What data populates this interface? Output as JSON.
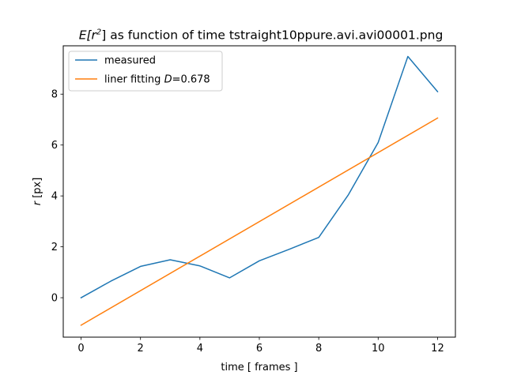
{
  "chart_data": {
    "type": "line",
    "title": {
      "prefix": "E[r",
      "superscript": "2",
      "suffix": "] as function of time tstraight10ppure.avi.avi00001.png"
    },
    "xlabel": "time [ frames ]",
    "ylabel": {
      "italic": "r",
      "rest": " [px]"
    },
    "xlim": [
      -0.6,
      12.6
    ],
    "ylim": [
      -1.55,
      9.9
    ],
    "xticks": [
      0,
      2,
      4,
      6,
      8,
      10,
      12
    ],
    "yticks": [
      0,
      2,
      4,
      6,
      8
    ],
    "legend_position": "top-left",
    "grid": false,
    "series": [
      {
        "name": "measured",
        "color": "#1f77b4",
        "x": [
          0,
          1,
          2,
          3,
          4,
          5,
          6,
          7,
          8,
          9,
          10,
          11,
          12
        ],
        "y": [
          0.0,
          0.65,
          1.23,
          1.49,
          1.25,
          0.78,
          1.45,
          1.9,
          2.37,
          4.05,
          6.1,
          9.48,
          8.1
        ]
      },
      {
        "name": "liner fitting D=0.678",
        "legend_text": {
          "before": "liner fitting ",
          "italic": "D",
          "after": "=0.678"
        },
        "color": "#ff7f0e",
        "x": [
          0,
          12
        ],
        "y": [
          -1.08,
          7.06
        ]
      }
    ]
  }
}
